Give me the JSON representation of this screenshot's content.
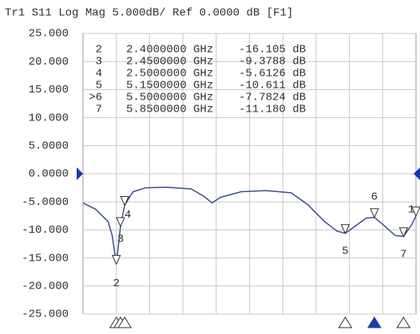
{
  "chart_data": {
    "type": "line",
    "title": "Tr1 S11 Log Mag 5.000dB/ Ref  0.0000 dB [F1]",
    "ylim": [
      -25,
      25
    ],
    "yticks": [
      {
        "value": -25,
        "label": "-25.000"
      },
      {
        "value": -20,
        "label": "-20.000"
      },
      {
        "value": -15,
        "label": "-15.000"
      },
      {
        "value": -10,
        "label": "-10.000"
      },
      {
        "value": -5,
        "label": "-5.0000"
      },
      {
        "value": 0,
        "label": "0.0000"
      },
      {
        "value": 5,
        "label": "5.0000"
      },
      {
        "value": 10,
        "label": "10.000"
      },
      {
        "value": 15,
        "label": "15.000"
      },
      {
        "value": 20,
        "label": "20.000"
      },
      {
        "value": 25,
        "label": "25.000"
      }
    ],
    "xlim": [
      2,
      6
    ],
    "grid": true,
    "ref": 0,
    "series": [
      {
        "name": "S11",
        "color": "#3c4f8c",
        "x": [
          2.0,
          2.15,
          2.3,
          2.35,
          2.4,
          2.45,
          2.5,
          2.6,
          2.75,
          3.0,
          3.3,
          3.45,
          3.55,
          3.65,
          3.9,
          4.2,
          4.5,
          4.7,
          4.9,
          5.05,
          5.15,
          5.3,
          5.4,
          5.5,
          5.6,
          5.75,
          5.85,
          5.95,
          6.0
        ],
        "values": [
          -5.2,
          -6.3,
          -8.5,
          -11,
          -16.105,
          -9.3788,
          -5.6126,
          -3.2,
          -2.5,
          -2.4,
          -2.7,
          -4.0,
          -5.2,
          -4.2,
          -3.2,
          -3.0,
          -3.4,
          -5.5,
          -8.5,
          -10.2,
          -10.611,
          -9.0,
          -7.9,
          -7.7824,
          -9.0,
          -11.0,
          -11.18,
          -9.0,
          -7.5
        ]
      }
    ],
    "markers": [
      {
        "label": "1",
        "x": 6.0,
        "value": -7.5
      },
      {
        "label": "2",
        "x": 2.4,
        "value": -16.105
      },
      {
        "label": "3",
        "x": 2.45,
        "value": -9.3788
      },
      {
        "label": "4",
        "x": 2.5,
        "value": -5.6126
      },
      {
        "label": "5",
        "x": 5.15,
        "value": -10.611
      },
      {
        "label": "6",
        "x": 5.5,
        "value": -7.7824
      },
      {
        "label": "7",
        "x": 5.85,
        "value": -11.18
      }
    ],
    "active": "6",
    "table": [
      {
        "id": "2",
        "freq": "2.4000000 GHz",
        "value": "-16.105 dB"
      },
      {
        "id": "3",
        "freq": "2.4500000 GHz",
        "value": "-9.3788 dB"
      },
      {
        "id": "4",
        "freq": "2.5000000 GHz",
        "value": "-5.6126 dB"
      },
      {
        "id": "5",
        "freq": "5.1500000 GHz",
        "value": "-10.611 dB"
      },
      {
        "id": ">6",
        "freq": "5.5000000 GHz",
        "value": "-7.7824 dB"
      },
      {
        "id": "7",
        "freq": "5.8500000 GHz",
        "value": "-11.180 dB"
      }
    ]
  }
}
